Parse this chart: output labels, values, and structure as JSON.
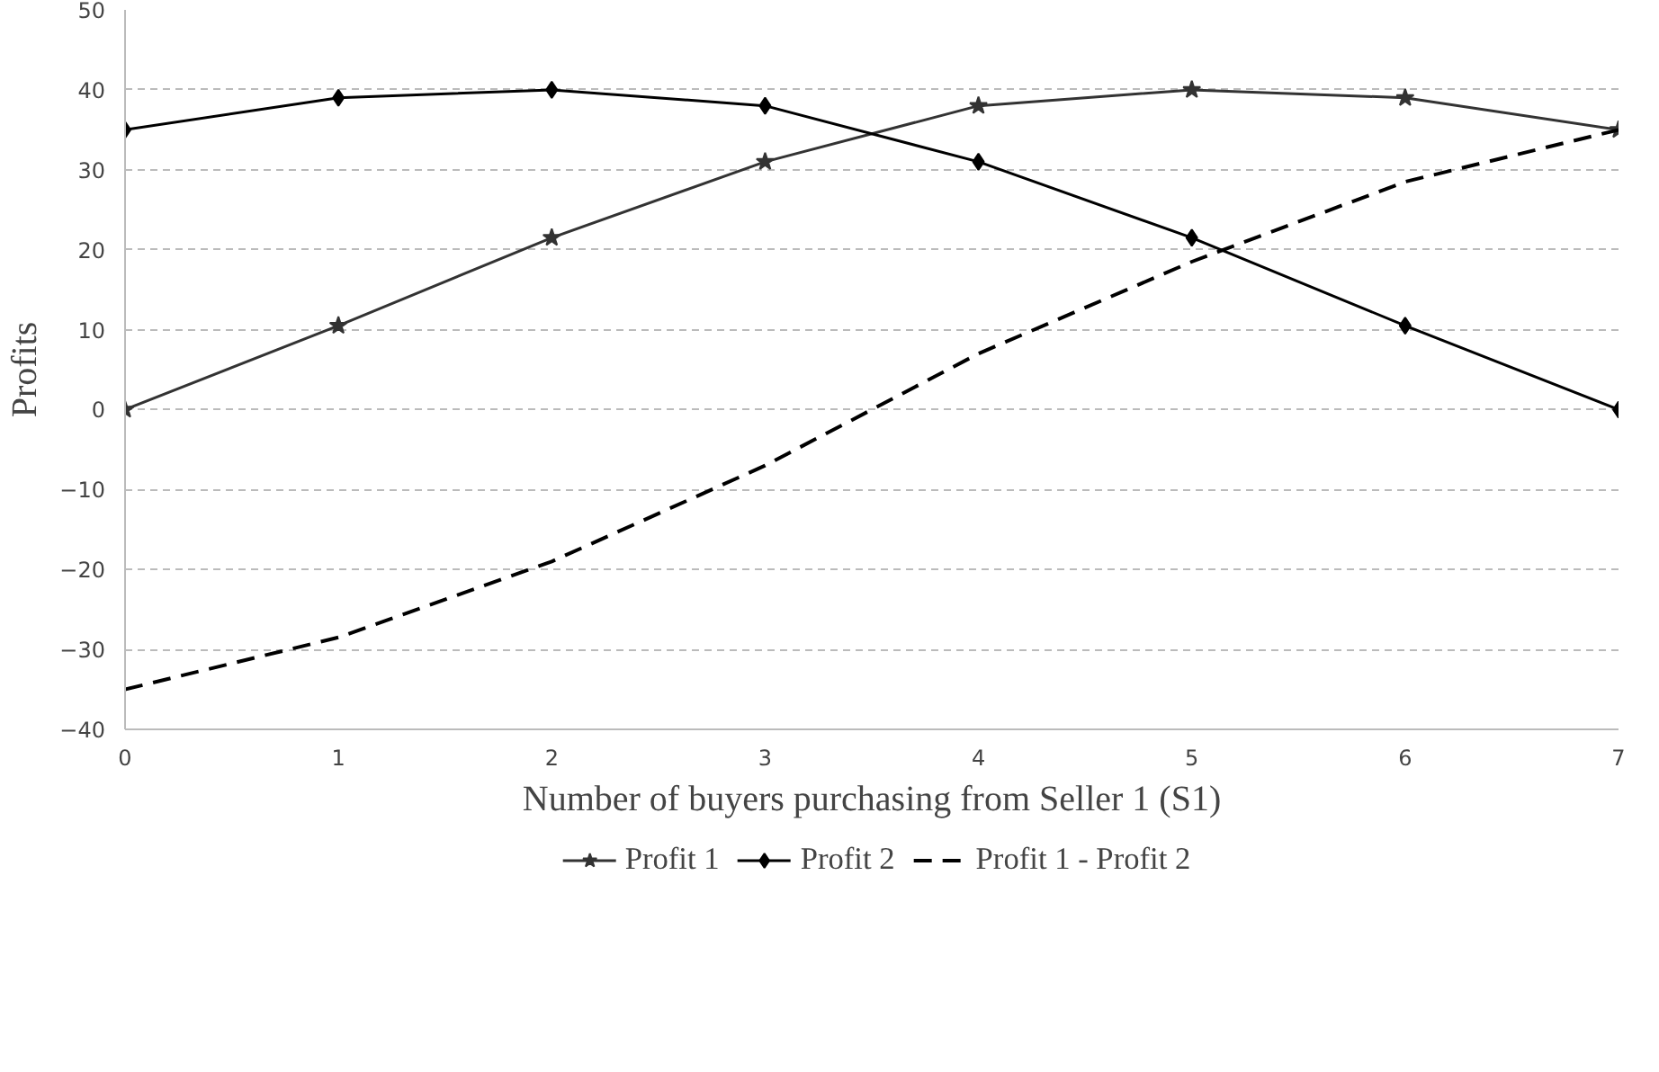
{
  "chart_data": {
    "type": "line",
    "xlabel": "Number of buyers purchasing from Seller 1 (S1)",
    "ylabel": "Profits",
    "x": [
      0,
      1,
      2,
      3,
      4,
      5,
      6,
      7
    ],
    "xlim": [
      0,
      7
    ],
    "xticks": [
      0,
      1,
      2,
      3,
      4,
      5,
      6,
      7
    ],
    "ylim": [
      -40,
      50
    ],
    "yticks": [
      -40,
      -30,
      -20,
      -10,
      0,
      10,
      20,
      30,
      40,
      50
    ],
    "grid": "y",
    "legend": "bottom",
    "series": [
      {
        "name": "Profit 1",
        "color": "#333333",
        "marker": "star",
        "line_style": "solid",
        "values": [
          0,
          10.5,
          21.5,
          31,
          38,
          40,
          39,
          35
        ]
      },
      {
        "name": "Profit 2",
        "color": "#000000",
        "marker": "diamond",
        "line_style": "solid",
        "values": [
          35,
          39,
          40,
          38,
          31,
          21.5,
          10.5,
          0
        ]
      },
      {
        "name": "Profit 1 - Profit 2",
        "color": "#000000",
        "marker": "none",
        "line_style": "dashed",
        "values": [
          -35,
          -28.5,
          -19,
          -7,
          7,
          18.5,
          28.5,
          35
        ]
      }
    ]
  }
}
